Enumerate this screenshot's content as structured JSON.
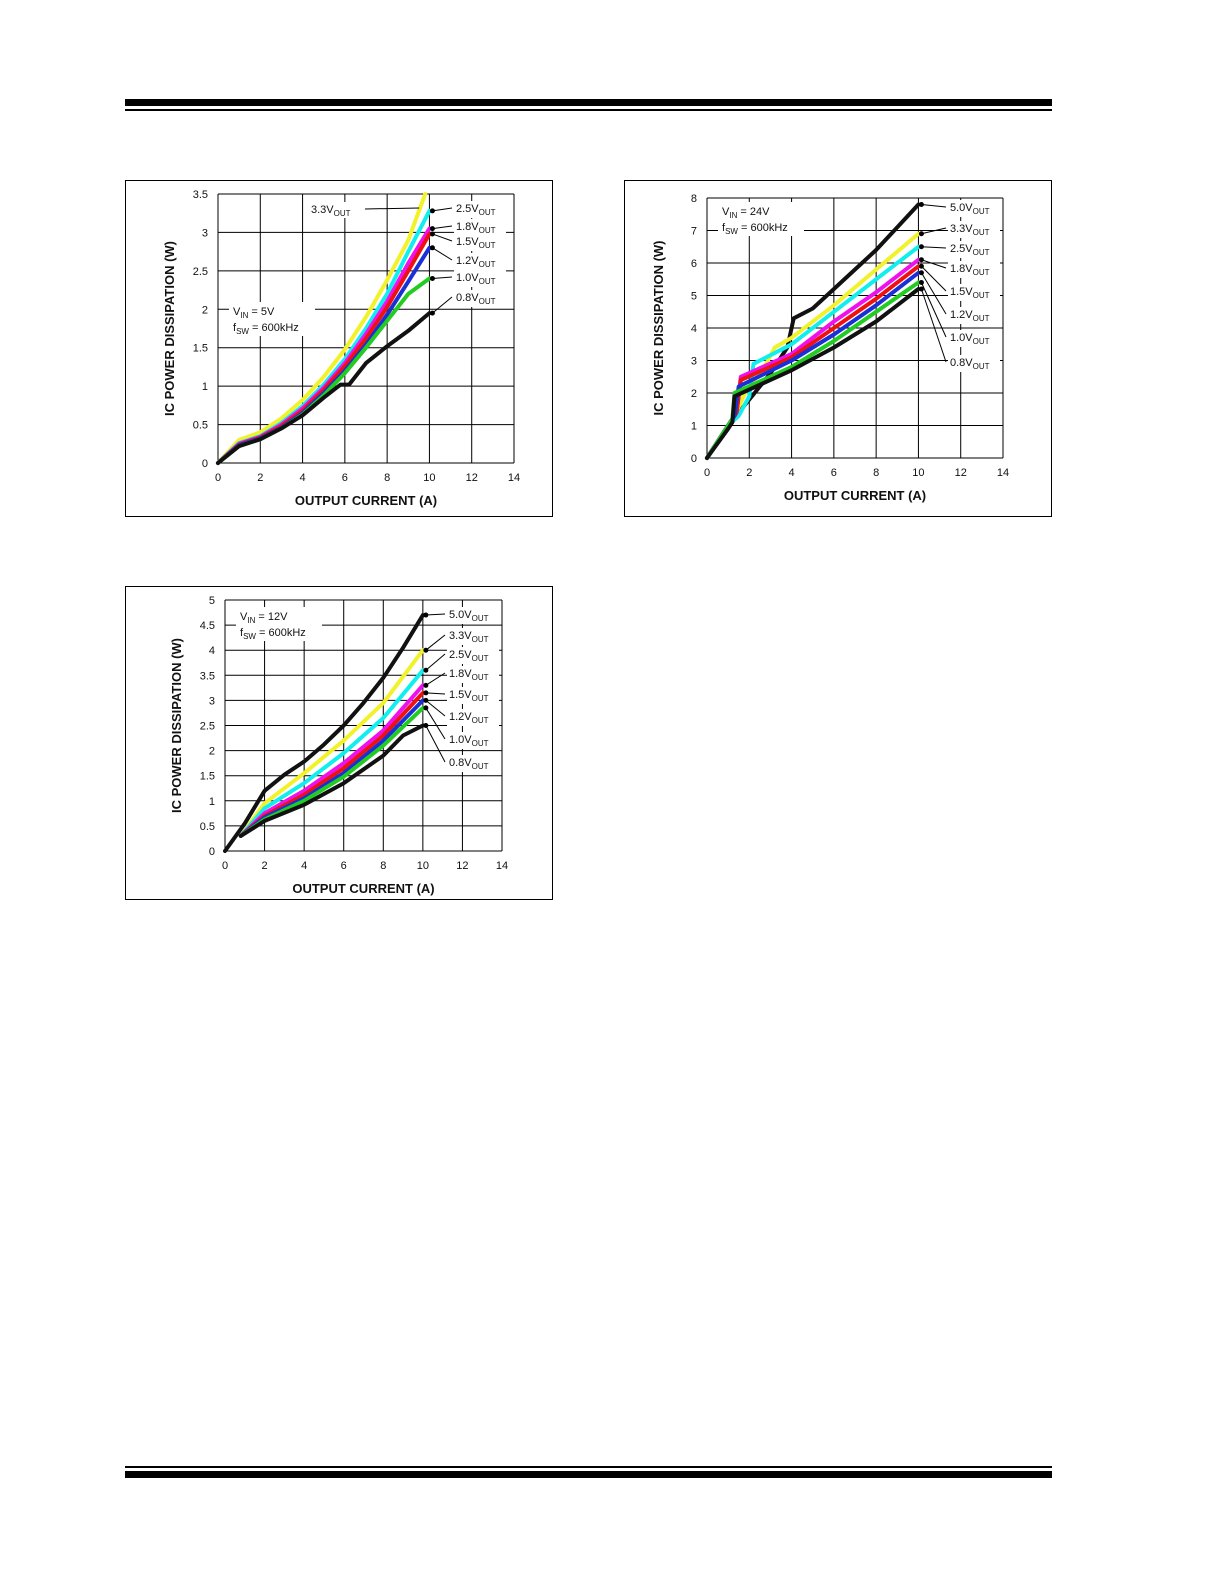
{
  "page": {
    "header_rules": true,
    "footer_rules": true
  },
  "colors": {
    "0.8V": "#111111",
    "1.0V": "#22cc22",
    "1.2V": "#1b2fd6",
    "1.5V": "#ee1111",
    "1.8V": "#ee11ee",
    "2.5V": "#11eeee",
    "3.3V": "#f2f22a",
    "5.0V": "#111111"
  },
  "chart_data": [
    {
      "id": "vin5",
      "type": "line",
      "xlabel": "OUTPUT CURRENT (A)",
      "ylabel": "IC POWER DISSIPATION (W)",
      "xlim": [
        0,
        14
      ],
      "ylim": [
        0,
        3.5
      ],
      "xticks": [
        "0",
        "2",
        "4",
        "6",
        "8",
        "10",
        "12",
        "14"
      ],
      "yticks": [
        "0",
        "0.5",
        "1",
        "1.5",
        "2",
        "2.5",
        "3",
        "3.5"
      ],
      "grid": true,
      "annotation": {
        "line1_pre": "V",
        "line1_sub": "IN",
        "line1_post": " = 5V",
        "line2_pre": "f",
        "line2_sub": "SW",
        "line2_post": " = 600kHz"
      },
      "series": [
        {
          "name": "3.3V",
          "label_pre": "3.3V",
          "label_sub": "OUT",
          "colorKey": "3.3V",
          "x": [
            0,
            1,
            2,
            3,
            4,
            5,
            6,
            7,
            8,
            9,
            9.8
          ],
          "y": [
            0,
            0.3,
            0.4,
            0.58,
            0.82,
            1.12,
            1.48,
            1.9,
            2.38,
            2.9,
            3.5
          ]
        },
        {
          "name": "2.5V",
          "label_pre": "2.5V",
          "label_sub": "OUT",
          "colorKey": "2.5V",
          "x": [
            0,
            1,
            2,
            3,
            4,
            5,
            6,
            7,
            8,
            9,
            10
          ],
          "y": [
            0,
            0.26,
            0.35,
            0.52,
            0.74,
            1.02,
            1.35,
            1.75,
            2.2,
            2.75,
            3.28
          ]
        },
        {
          "name": "1.8V",
          "label_pre": "1.8V",
          "label_sub": "OUT",
          "colorKey": "1.8V",
          "x": [
            0,
            1,
            2,
            3,
            4,
            5,
            6,
            7,
            8,
            9,
            10
          ],
          "y": [
            0,
            0.25,
            0.34,
            0.5,
            0.71,
            0.98,
            1.3,
            1.68,
            2.1,
            2.6,
            3.05
          ]
        },
        {
          "name": "1.5V",
          "label_pre": "1.5V",
          "label_sub": "OUT",
          "colorKey": "1.5V",
          "x": [
            0,
            1,
            2,
            3,
            4,
            5,
            6,
            7,
            8,
            9,
            10
          ],
          "y": [
            0,
            0.24,
            0.33,
            0.48,
            0.68,
            0.95,
            1.26,
            1.62,
            2.03,
            2.5,
            2.98
          ]
        },
        {
          "name": "1.2V",
          "label_pre": "1.2V",
          "label_sub": "OUT",
          "colorKey": "1.2V",
          "x": [
            0,
            1,
            2,
            3,
            4,
            5,
            6,
            7,
            8,
            9,
            10
          ],
          "y": [
            0,
            0.23,
            0.32,
            0.46,
            0.65,
            0.91,
            1.2,
            1.54,
            1.93,
            2.36,
            2.8
          ]
        },
        {
          "name": "1.0V",
          "label_pre": "1.0V",
          "label_sub": "OUT",
          "colorKey": "1.0V",
          "x": [
            0,
            1,
            2,
            3,
            4,
            5,
            6,
            7,
            8,
            9,
            10
          ],
          "y": [
            0,
            0.22,
            0.31,
            0.45,
            0.63,
            0.88,
            1.17,
            1.5,
            1.85,
            2.2,
            2.4
          ]
        },
        {
          "name": "0.8V",
          "label_pre": "0.8V",
          "label_sub": "OUT",
          "colorKey": "0.8V",
          "x": [
            0,
            1,
            2,
            3,
            4,
            5,
            5.8,
            6.2,
            7,
            8,
            9,
            10
          ],
          "y": [
            0,
            0.22,
            0.31,
            0.45,
            0.62,
            0.85,
            1.02,
            1.02,
            1.3,
            1.52,
            1.72,
            1.95
          ]
        }
      ]
    },
    {
      "id": "vin24",
      "type": "line",
      "xlabel": "OUTPUT CURRENT (A)",
      "ylabel": "IC POWER DISSIPATION (W)",
      "xlim": [
        0,
        14
      ],
      "ylim": [
        0,
        8
      ],
      "xticks": [
        "0",
        "2",
        "4",
        "6",
        "8",
        "10",
        "12",
        "14"
      ],
      "yticks": [
        "0",
        "1",
        "2",
        "3",
        "4",
        "5",
        "6",
        "7",
        "8"
      ],
      "grid": true,
      "annotation": {
        "line1_pre": "V",
        "line1_sub": "IN",
        "line1_post": " = 24V",
        "line2_pre": "f",
        "line2_sub": "SW",
        "line2_post": " = 600kHz"
      },
      "series": [
        {
          "name": "5.0V",
          "label_pre": "5.0V",
          "label_sub": "OUT",
          "colorKey": "5.0V",
          "x": [
            0,
            1,
            2,
            3,
            3.8,
            4.1,
            5,
            6,
            7,
            8,
            9,
            10
          ],
          "y": [
            0,
            1.0,
            1.8,
            2.6,
            3.4,
            4.3,
            4.6,
            5.2,
            5.8,
            6.4,
            7.1,
            7.8
          ]
        },
        {
          "name": "3.3V",
          "label_pre": "3.3V",
          "label_sub": "OUT",
          "colorKey": "3.3V",
          "x": [
            0,
            1,
            1.3,
            1.8,
            2.8,
            3.2,
            4,
            6,
            8,
            10
          ],
          "y": [
            0,
            1.0,
            1.3,
            2.0,
            2.9,
            3.4,
            3.7,
            4.7,
            5.8,
            6.9
          ]
        },
        {
          "name": "2.5V",
          "label_pre": "2.5V",
          "label_sub": "OUT",
          "colorKey": "2.5V",
          "x": [
            0,
            1,
            1.5,
            2.0,
            2.2,
            4,
            6,
            8,
            10
          ],
          "y": [
            0,
            1.0,
            1.3,
            1.9,
            2.9,
            3.5,
            4.5,
            5.5,
            6.5
          ]
        },
        {
          "name": "1.8V",
          "label_pre": "1.8V",
          "label_sub": "OUT",
          "colorKey": "1.8V",
          "x": [
            0,
            1,
            1.4,
            1.6,
            4,
            6,
            8,
            10
          ],
          "y": [
            0,
            1.0,
            1.4,
            2.5,
            3.2,
            4.2,
            5.1,
            6.1
          ]
        },
        {
          "name": "1.5V",
          "label_pre": "1.5V",
          "label_sub": "OUT",
          "colorKey": "1.5V",
          "x": [
            0,
            1,
            1.4,
            1.6,
            4,
            6,
            8,
            10
          ],
          "y": [
            0,
            1.0,
            1.4,
            2.4,
            3.1,
            4.0,
            4.9,
            5.9
          ]
        },
        {
          "name": "1.2V",
          "label_pre": "1.2V",
          "label_sub": "OUT",
          "colorKey": "1.2V",
          "x": [
            0,
            1,
            1.3,
            1.5,
            4,
            6,
            8,
            10
          ],
          "y": [
            0,
            1.0,
            1.3,
            2.2,
            3.0,
            3.8,
            4.7,
            5.7
          ]
        },
        {
          "name": "1.0V",
          "label_pre": "1.0V",
          "label_sub": "OUT",
          "colorKey": "1.0V",
          "x": [
            0,
            1,
            1.2,
            1.3,
            4,
            6,
            8,
            10
          ],
          "y": [
            0,
            1.0,
            1.2,
            2.0,
            2.8,
            3.6,
            4.5,
            5.4
          ]
        },
        {
          "name": "0.8V",
          "label_pre": "0.8V",
          "label_sub": "OUT",
          "colorKey": "0.8V",
          "x": [
            0,
            1,
            1.2,
            1.3,
            4,
            6,
            8,
            10
          ],
          "y": [
            0,
            0.9,
            1.1,
            1.9,
            2.7,
            3.4,
            4.2,
            5.2
          ]
        }
      ]
    },
    {
      "id": "vin12",
      "type": "line",
      "xlabel": "OUTPUT CURRENT (A)",
      "ylabel": "IC POWER DISSIPATION (W)",
      "xlim": [
        0,
        14
      ],
      "ylim": [
        0,
        5
      ],
      "xticks": [
        "0",
        "2",
        "4",
        "6",
        "8",
        "10",
        "12",
        "14"
      ],
      "yticks": [
        "0",
        "0.5",
        "1",
        "1.5",
        "2",
        "2.5",
        "3",
        "3.5",
        "4",
        "4.5",
        "5"
      ],
      "grid": true,
      "annotation": {
        "line1_pre": "V",
        "line1_sub": "IN",
        "line1_post": " = 12V",
        "line2_pre": "f",
        "line2_sub": "SW",
        "line2_post": " = 600kHz"
      },
      "series": [
        {
          "name": "5.0V",
          "label_pre": "5.0V",
          "label_sub": "OUT",
          "colorKey": "5.0V",
          "x": [
            0,
            1,
            2,
            3,
            4,
            5,
            6,
            7,
            8,
            9,
            10
          ],
          "y": [
            0,
            0.55,
            1.2,
            1.52,
            1.78,
            2.12,
            2.5,
            2.95,
            3.45,
            4.05,
            4.7
          ]
        },
        {
          "name": "3.3V",
          "label_pre": "3.3V",
          "label_sub": "OUT",
          "colorKey": "3.3V",
          "x": [
            0.8,
            2,
            4,
            6,
            8,
            10
          ],
          "y": [
            0.3,
            0.95,
            1.55,
            2.2,
            2.95,
            4.0
          ]
        },
        {
          "name": "2.5V",
          "label_pre": "2.5V",
          "label_sub": "OUT",
          "colorKey": "2.5V",
          "x": [
            0.8,
            2,
            4,
            6,
            8,
            10
          ],
          "y": [
            0.3,
            0.85,
            1.35,
            1.95,
            2.65,
            3.6
          ]
        },
        {
          "name": "1.8V",
          "label_pre": "1.8V",
          "label_sub": "OUT",
          "colorKey": "1.8V",
          "x": [
            0.8,
            2,
            4,
            6,
            8,
            10
          ],
          "y": [
            0.3,
            0.75,
            1.2,
            1.75,
            2.4,
            3.3
          ]
        },
        {
          "name": "1.5V",
          "label_pre": "1.5V",
          "label_sub": "OUT",
          "colorKey": "1.5V",
          "x": [
            0.8,
            2,
            4,
            6,
            8,
            10
          ],
          "y": [
            0.3,
            0.7,
            1.12,
            1.65,
            2.3,
            3.15
          ]
        },
        {
          "name": "1.2V",
          "label_pre": "1.2V",
          "label_sub": "OUT",
          "colorKey": "1.2V",
          "x": [
            0.8,
            2,
            4,
            6,
            8,
            10
          ],
          "y": [
            0.3,
            0.67,
            1.05,
            1.55,
            2.2,
            3.0
          ]
        },
        {
          "name": "1.0V",
          "label_pre": "1.0V",
          "label_sub": "OUT",
          "colorKey": "1.0V",
          "x": [
            0.8,
            2,
            4,
            6,
            8,
            10
          ],
          "y": [
            0.3,
            0.63,
            1.0,
            1.48,
            2.1,
            2.85
          ]
        },
        {
          "name": "0.8V",
          "label_pre": "0.8V",
          "label_sub": "OUT",
          "colorKey": "0.8V",
          "x": [
            0.8,
            2,
            4,
            6,
            8,
            9,
            10
          ],
          "y": [
            0.3,
            0.6,
            0.92,
            1.35,
            1.9,
            2.3,
            2.5
          ]
        }
      ]
    }
  ]
}
